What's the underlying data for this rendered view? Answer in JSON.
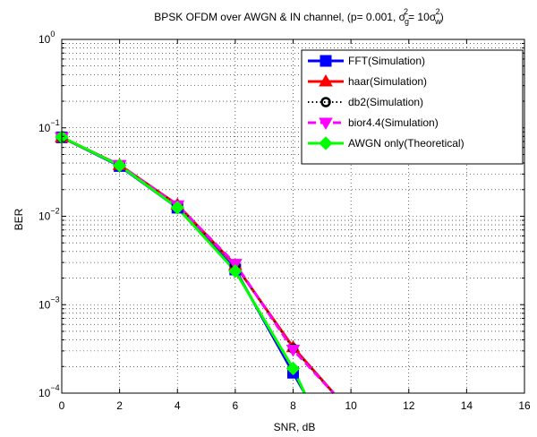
{
  "chart_data": {
    "type": "line",
    "title": {
      "prefix": "BPSK OFDM over AWGN & IN channel, (p= 0.001, ",
      "sigma": "σ",
      "sub_g": "g",
      "sup_2": "2",
      "mid": "= 10",
      "sub_w": "w",
      "suffix": ")"
    },
    "xlabel": "SNR, dB",
    "ylabel": "BER",
    "xlim": [
      0,
      16
    ],
    "ylim": [
      0.0001,
      1
    ],
    "yscale": "log",
    "grid": true,
    "legend_position": "top-right",
    "x_ticks": [
      "0",
      "2",
      "4",
      "6",
      "8",
      "10",
      "12",
      "14",
      "16"
    ],
    "y_ticks": [
      {
        "base": "10",
        "exp": "0"
      },
      {
        "base": "10",
        "exp": "−1"
      },
      {
        "base": "10",
        "exp": "−2"
      },
      {
        "base": "10",
        "exp": "−3"
      },
      {
        "base": "10",
        "exp": "−4"
      }
    ],
    "series": [
      {
        "name": "FFT(Simulation)",
        "color": "#0000ff",
        "marker": "square",
        "dash": "solid",
        "x": [
          0,
          2,
          4,
          6,
          8,
          8.4
        ],
        "y": [
          0.078,
          0.037,
          0.0125,
          0.0025,
          0.00017,
          0.0001
        ]
      },
      {
        "name": "haar(Simulation)",
        "color": "#ff0000",
        "marker": "triangle-up",
        "dash": "solid",
        "x": [
          0,
          2,
          4,
          6,
          8,
          9.4
        ],
        "y": [
          0.078,
          0.038,
          0.0135,
          0.0028,
          0.00033,
          0.0001
        ]
      },
      {
        "name": "db2(Simulation)",
        "color": "#000000",
        "marker": "circle",
        "dash": "dotted",
        "x": [
          0,
          2,
          4,
          6,
          8,
          9.4
        ],
        "y": [
          0.078,
          0.038,
          0.0133,
          0.0028,
          0.00032,
          0.0001
        ]
      },
      {
        "name": "bior4.4(Simulation)",
        "color": "#ff00ff",
        "marker": "triangle-down",
        "dash": "dashed",
        "x": [
          0,
          2,
          4,
          6,
          8,
          9.4
        ],
        "y": [
          0.078,
          0.038,
          0.0133,
          0.0029,
          0.00031,
          0.0001
        ]
      },
      {
        "name": "AWGN only(Theoretical)",
        "color": "#00ff00",
        "marker": "diamond",
        "dash": "solid",
        "x": [
          0,
          2,
          4,
          6,
          8,
          8.4
        ],
        "y": [
          0.0786,
          0.0375,
          0.0125,
          0.0024,
          0.00019,
          0.0001
        ]
      }
    ]
  }
}
